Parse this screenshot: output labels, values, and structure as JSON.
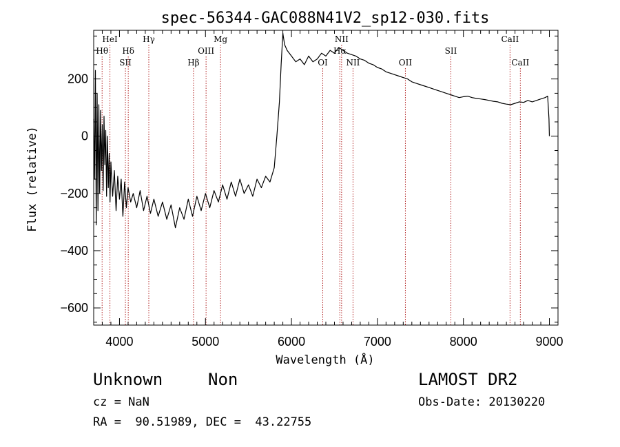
{
  "chart_data": {
    "type": "line",
    "title": "spec-56344-GAC088N41V2_sp12-030.fits",
    "xlabel": "Wavelength (Å)",
    "ylabel": "Flux (relative)",
    "xlim": [
      3700,
      9100
    ],
    "ylim": [
      -660,
      370
    ],
    "xticks": [
      4000,
      5000,
      6000,
      7000,
      8000,
      9000
    ],
    "yticks": [
      -600,
      -400,
      -200,
      0,
      200
    ],
    "series": [
      {
        "points": [
          [
            3700,
            60
          ],
          [
            3710,
            -150
          ],
          [
            3720,
            230
          ],
          [
            3730,
            -310
          ],
          [
            3740,
            150
          ],
          [
            3750,
            -260
          ],
          [
            3760,
            110
          ],
          [
            3770,
            -200
          ],
          [
            3780,
            90
          ],
          [
            3790,
            -120
          ],
          [
            3800,
            40
          ],
          [
            3810,
            -190
          ],
          [
            3820,
            70
          ],
          [
            3830,
            -100
          ],
          [
            3840,
            20
          ],
          [
            3850,
            -210
          ],
          [
            3860,
            0
          ],
          [
            3870,
            -180
          ],
          [
            3880,
            -60
          ],
          [
            3890,
            -230
          ],
          [
            3900,
            -90
          ],
          [
            3920,
            -210
          ],
          [
            3940,
            -120
          ],
          [
            3960,
            -260
          ],
          [
            3980,
            -140
          ],
          [
            4000,
            -220
          ],
          [
            4020,
            -150
          ],
          [
            4040,
            -280
          ],
          [
            4060,
            -160
          ],
          [
            4080,
            -250
          ],
          [
            4100,
            -180
          ],
          [
            4130,
            -230
          ],
          [
            4160,
            -200
          ],
          [
            4200,
            -250
          ],
          [
            4240,
            -190
          ],
          [
            4280,
            -260
          ],
          [
            4320,
            -210
          ],
          [
            4360,
            -270
          ],
          [
            4400,
            -220
          ],
          [
            4450,
            -280
          ],
          [
            4500,
            -230
          ],
          [
            4550,
            -290
          ],
          [
            4600,
            -240
          ],
          [
            4650,
            -320
          ],
          [
            4700,
            -250
          ],
          [
            4750,
            -290
          ],
          [
            4800,
            -220
          ],
          [
            4850,
            -280
          ],
          [
            4900,
            -210
          ],
          [
            4950,
            -260
          ],
          [
            5000,
            -200
          ],
          [
            5050,
            -250
          ],
          [
            5100,
            -190
          ],
          [
            5150,
            -230
          ],
          [
            5200,
            -170
          ],
          [
            5250,
            -220
          ],
          [
            5300,
            -160
          ],
          [
            5350,
            -210
          ],
          [
            5400,
            -150
          ],
          [
            5450,
            -200
          ],
          [
            5500,
            -170
          ],
          [
            5550,
            -210
          ],
          [
            5600,
            -150
          ],
          [
            5650,
            -180
          ],
          [
            5700,
            -140
          ],
          [
            5750,
            -160
          ],
          [
            5800,
            -110
          ],
          [
            5830,
            0
          ],
          [
            5860,
            120
          ],
          [
            5880,
            250
          ],
          [
            5900,
            360
          ],
          [
            5920,
            320
          ],
          [
            5950,
            300
          ],
          [
            6000,
            280
          ],
          [
            6050,
            260
          ],
          [
            6100,
            270
          ],
          [
            6150,
            250
          ],
          [
            6200,
            280
          ],
          [
            6250,
            260
          ],
          [
            6300,
            270
          ],
          [
            6350,
            290
          ],
          [
            6400,
            280
          ],
          [
            6450,
            300
          ],
          [
            6500,
            290
          ],
          [
            6550,
            310
          ],
          [
            6600,
            300
          ],
          [
            6650,
            290
          ],
          [
            6700,
            285
          ],
          [
            6750,
            280
          ],
          [
            6800,
            270
          ],
          [
            6850,
            265
          ],
          [
            6900,
            255
          ],
          [
            6950,
            250
          ],
          [
            7000,
            240
          ],
          [
            7050,
            235
          ],
          [
            7100,
            225
          ],
          [
            7150,
            220
          ],
          [
            7200,
            215
          ],
          [
            7250,
            210
          ],
          [
            7300,
            205
          ],
          [
            7350,
            200
          ],
          [
            7400,
            190
          ],
          [
            7450,
            185
          ],
          [
            7500,
            180
          ],
          [
            7550,
            175
          ],
          [
            7600,
            170
          ],
          [
            7650,
            165
          ],
          [
            7700,
            160
          ],
          [
            7750,
            155
          ],
          [
            7800,
            150
          ],
          [
            7850,
            145
          ],
          [
            7900,
            140
          ],
          [
            7950,
            135
          ],
          [
            8000,
            138
          ],
          [
            8050,
            140
          ],
          [
            8100,
            135
          ],
          [
            8150,
            132
          ],
          [
            8200,
            130
          ],
          [
            8250,
            128
          ],
          [
            8300,
            125
          ],
          [
            8350,
            122
          ],
          [
            8400,
            120
          ],
          [
            8450,
            115
          ],
          [
            8500,
            112
          ],
          [
            8550,
            110
          ],
          [
            8600,
            115
          ],
          [
            8650,
            120
          ],
          [
            8700,
            118
          ],
          [
            8750,
            125
          ],
          [
            8800,
            120
          ],
          [
            8850,
            125
          ],
          [
            8900,
            130
          ],
          [
            8950,
            135
          ],
          [
            8980,
            140
          ],
          [
            8995,
            60
          ],
          [
            9000,
            0
          ]
        ]
      }
    ],
    "lines": [
      {
        "label": "Hθ",
        "x": 3798,
        "row": 2
      },
      {
        "label": "HeI",
        "x": 3889,
        "row": 1
      },
      {
        "label": "Hδ",
        "x": 4102,
        "row": 2
      },
      {
        "label": "SII",
        "x": 4069,
        "row": 3
      },
      {
        "label": "Hγ",
        "x": 4341,
        "row": 1
      },
      {
        "label": "Hβ",
        "x": 4861,
        "row": 3
      },
      {
        "label": "OIII",
        "x": 5007,
        "row": 2
      },
      {
        "label": "Mg",
        "x": 5175,
        "row": 1
      },
      {
        "label": "OI",
        "x": 6364,
        "row": 3
      },
      {
        "label": "NII",
        "x": 6583,
        "row": 1
      },
      {
        "label": "Hα",
        "x": 6563,
        "row": 2
      },
      {
        "label": "NII",
        "x": 6716,
        "row": 3
      },
      {
        "label": "OII",
        "x": 7325,
        "row": 3
      },
      {
        "label": "SII",
        "x": 7854,
        "row": 2
      },
      {
        "label": "CaII",
        "x": 8542,
        "row": 1
      },
      {
        "label": "CaII",
        "x": 8662,
        "row": 3
      }
    ]
  },
  "info": {
    "class": "Unknown",
    "subclass": "Non",
    "survey": "LAMOST DR2",
    "cz": "cz = NaN",
    "obs_date": "Obs-Date: 20130220",
    "coords": "RA =  90.51989, DEC =  43.22755"
  }
}
